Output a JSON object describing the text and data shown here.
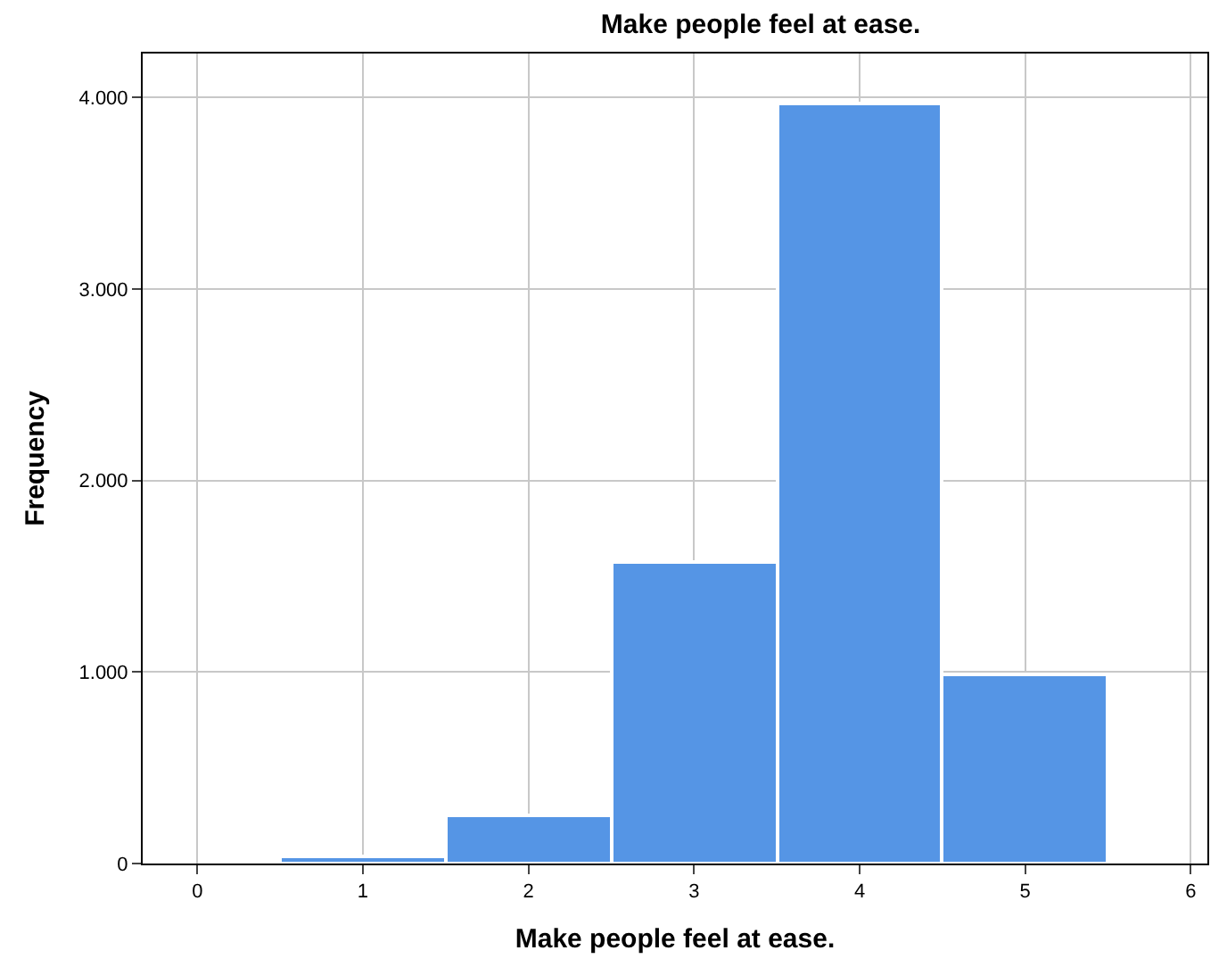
{
  "chart_data": {
    "type": "histogram",
    "title": "Make people feel at ease.",
    "xlabel": "Make people feel at ease.",
    "ylabel": "Frequency",
    "bins": [
      0.5,
      1.5,
      2.5,
      3.5,
      4.5,
      5.5
    ],
    "values": [
      35,
      250,
      1570,
      3970,
      985
    ],
    "color": "#5595e5",
    "xlim": [
      -0.33,
      6.1
    ],
    "xticks": [
      0,
      1,
      2,
      3,
      4,
      5,
      6
    ],
    "ylim": [
      0,
      4230
    ],
    "yticks": [
      0,
      {
        "value": 1000,
        "label": "1.000"
      },
      {
        "value": 2000,
        "label": "2.000"
      },
      {
        "value": 3000,
        "label": "3.000"
      },
      {
        "value": 4000,
        "label": "4.000"
      }
    ],
    "grid": true
  }
}
